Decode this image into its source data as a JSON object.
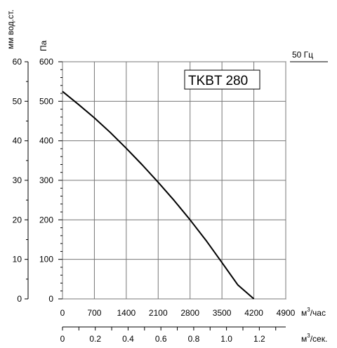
{
  "chart_data": {
    "type": "line",
    "title": "TKBT 280",
    "frequency_label": "50 Гц",
    "y_left_label": "мм вод.ст.",
    "y_left_ticks": [
      "60",
      "50",
      "40",
      "30",
      "20",
      "10",
      "0"
    ],
    "y_left_ticks_values": [
      60,
      50,
      40,
      30,
      20,
      10,
      0
    ],
    "y_right_label": "Па",
    "y_right_ticks": [
      "600",
      "500",
      "400",
      "300",
      "200",
      "100",
      "0"
    ],
    "y_right_ticks_values": [
      600,
      500,
      400,
      300,
      200,
      100,
      0
    ],
    "ylim": [
      0,
      600
    ],
    "x_label": "м³/час",
    "x_ticks": [
      "0",
      "700",
      "1400",
      "2100",
      "2800",
      "3500",
      "4200",
      "4900"
    ],
    "x_ticks_values": [
      0,
      700,
      1400,
      2100,
      2800,
      3500,
      4200,
      4900
    ],
    "xlim": [
      0,
      4900
    ],
    "x2_label": "м³/сек.",
    "x2_ticks": [
      "0",
      "0.2",
      "0.4",
      "0.6",
      "0.8",
      "1.0",
      "1.2"
    ],
    "x2_ticks_values": [
      0,
      0.2,
      0.4,
      0.6,
      0.8,
      1.0,
      1.2
    ],
    "x2lim": [
      0,
      1.3611
    ],
    "grid": true,
    "series": [
      {
        "color": "#000000",
        "x": [
          0,
          350,
          700,
          1050,
          1400,
          1750,
          2100,
          2450,
          2800,
          3150,
          3500,
          3850,
          4200
        ],
        "y": [
          525,
          492,
          458,
          421,
          381,
          339,
          295,
          249,
          200,
          148,
          92,
          35,
          0
        ]
      }
    ]
  }
}
